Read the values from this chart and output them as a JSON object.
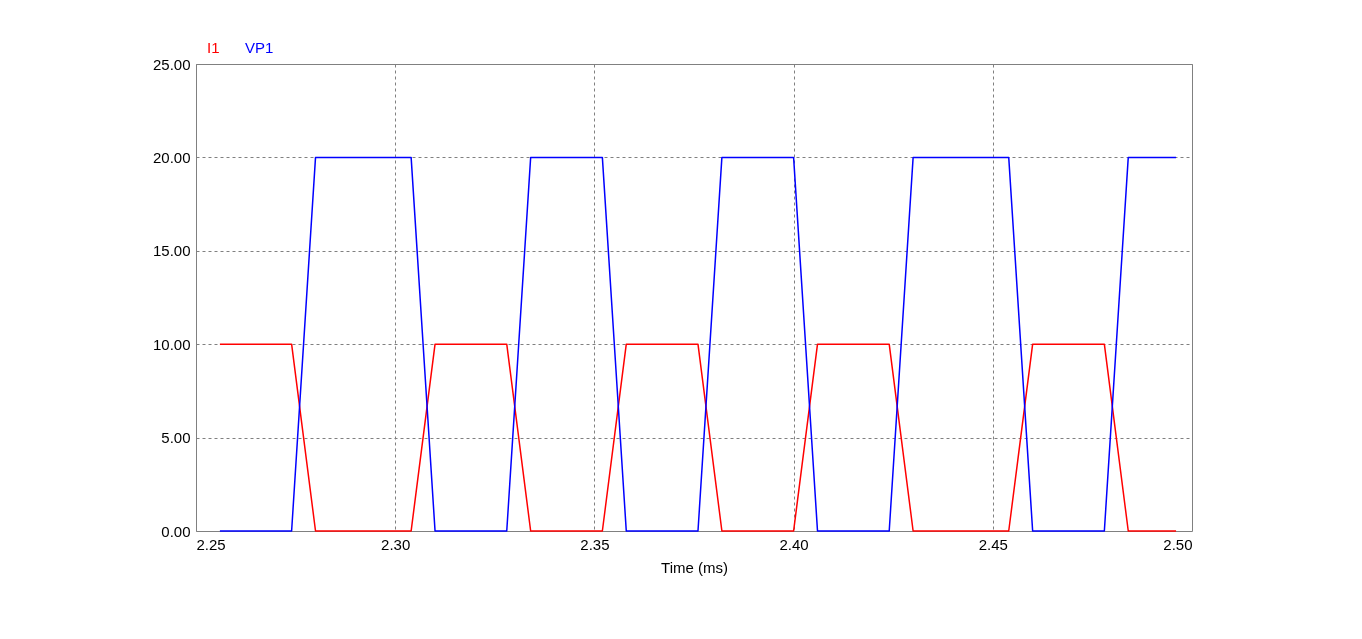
{
  "chart_data": {
    "type": "line",
    "xlabel": "Time (ms)",
    "x": [
      2.256,
      2.274,
      2.28,
      2.304,
      2.31,
      2.328,
      2.334,
      2.352,
      2.358,
      2.376,
      2.382,
      2.4,
      2.406,
      2.424,
      2.43,
      2.454,
      2.46,
      2.478,
      2.484,
      2.496
    ],
    "series": [
      {
        "name": "I1",
        "color": "#ff0000",
        "values": [
          10,
          10,
          0,
          0,
          10,
          10,
          0,
          0,
          10,
          10,
          0,
          0,
          10,
          10,
          0,
          0,
          10,
          10,
          0,
          0
        ]
      },
      {
        "name": "VP1",
        "color": "#0000ff",
        "values": [
          0,
          0,
          20,
          20,
          0,
          0,
          20,
          20,
          0,
          0,
          20,
          20,
          0,
          0,
          20,
          20,
          0,
          0,
          20,
          20
        ]
      }
    ],
    "xlim": [
      2.25,
      2.5
    ],
    "xticks": [
      2.25,
      {
        "value": 2.3,
        "label": "2.30"
      },
      2.35,
      {
        "value": 2.4,
        "label": "2.40"
      },
      2.45,
      {
        "value": 2.5,
        "label": "2.50"
      }
    ],
    "ylim": [
      0,
      25
    ],
    "yticks": [
      {
        "value": 0,
        "label": "0.00"
      },
      {
        "value": 5,
        "label": "5.00"
      },
      {
        "value": 10,
        "label": "10.00"
      },
      {
        "value": 15,
        "label": "15.00"
      },
      {
        "value": 20,
        "label": "20.00"
      },
      {
        "value": 25,
        "label": "25.00"
      }
    ],
    "grid": true,
    "legend": "top left"
  }
}
